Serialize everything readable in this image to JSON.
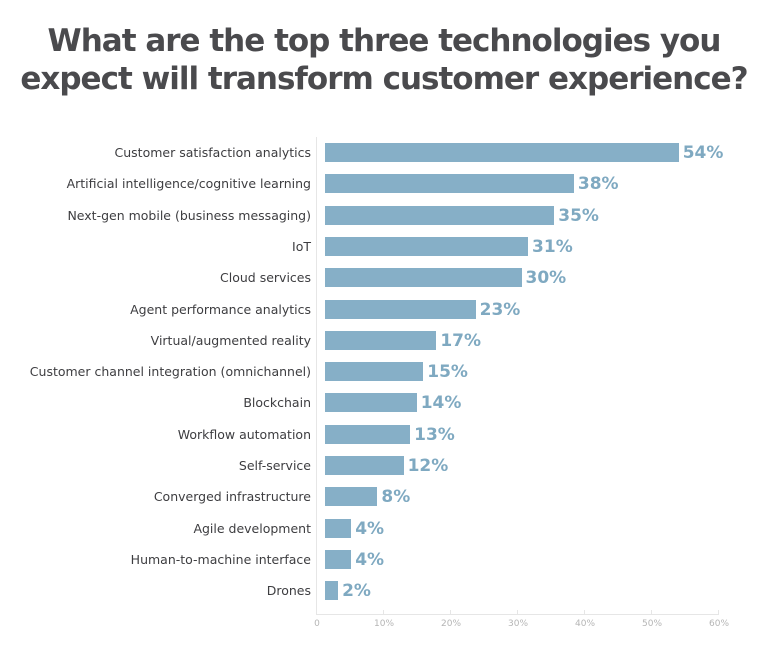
{
  "title_line1": "What are the top three technologies you",
  "title_line2": "expect will transform customer experience?",
  "colors": {
    "bar": "#86afc7",
    "value_label": "#7fa9c1",
    "title": "#4a4a4d",
    "axis": "#e6e6e6"
  },
  "chart_data": {
    "type": "bar",
    "orientation": "horizontal",
    "title": "What are the top three technologies you expect will transform customer experience?",
    "xlabel": "",
    "ylabel": "",
    "xlim": [
      0,
      60
    ],
    "grid": false,
    "categories": [
      "Customer satisfaction analytics",
      "Artificial intelligence/cognitive learning",
      "Next-gen mobile (business messaging)",
      "IoT",
      "Cloud services",
      "Agent performance analytics",
      "Virtual/augmented reality",
      "Customer channel integration (omnichannel)",
      "Blockchain",
      "Workflow automation",
      "Self-service",
      "Converged infrastructure",
      "Agile development",
      "Human-to-machine interface",
      "Drones"
    ],
    "values": [
      54,
      38,
      35,
      31,
      30,
      23,
      17,
      15,
      14,
      13,
      12,
      8,
      4,
      4,
      2
    ],
    "value_labels": [
      "54%",
      "38%",
      "35%",
      "31%",
      "30%",
      "23%",
      "17%",
      "15%",
      "14%",
      "13%",
      "12%",
      "8%",
      "4%",
      "4%",
      "2%"
    ],
    "x_ticks": [
      "0",
      "10%",
      "20%",
      "30%",
      "40%",
      "50%",
      "60%"
    ]
  }
}
